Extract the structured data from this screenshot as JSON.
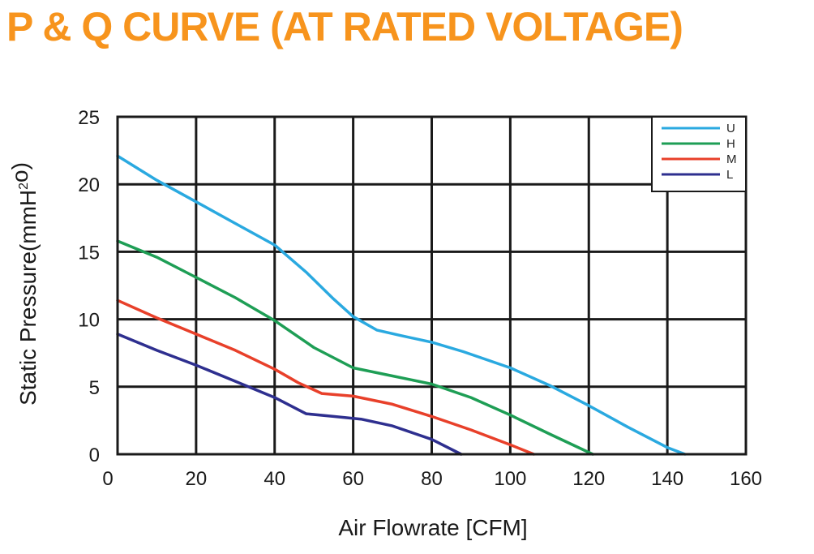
{
  "title": "P & Q CURVE (AT RATED VOLTAGE)",
  "colors": {
    "title": "#f7941d",
    "U": "#2aa9e0",
    "H": "#1e9e55",
    "M": "#e8402a",
    "L": "#2e2f8f"
  },
  "chart_data": {
    "type": "line",
    "title": "P & Q CURVE (AT RATED VOLTAGE)",
    "xlabel": "Air  Flowrate   [CFM]",
    "ylabel": "Static Pressure(mmH²o)",
    "xlim": [
      0,
      160
    ],
    "ylim": [
      0,
      25
    ],
    "xticks": [
      "0",
      "20",
      "40",
      "60",
      "80",
      "100",
      "120",
      "140",
      "160"
    ],
    "yticks": [
      "0",
      "5",
      "10",
      "15",
      "20",
      "25"
    ],
    "grid": true,
    "legend_position": "top-right",
    "series": [
      {
        "name": "U",
        "color": "#2aa9e0",
        "x": [
          0,
          10,
          20,
          30,
          40,
          48,
          55,
          60,
          66,
          72,
          80,
          88,
          100,
          110,
          120,
          130,
          140,
          144.5
        ],
        "y": [
          22.1,
          20.3,
          18.7,
          17.1,
          15.5,
          13.5,
          11.5,
          10.2,
          9.2,
          8.8,
          8.3,
          7.6,
          6.4,
          5.1,
          3.6,
          2.0,
          0.5,
          0
        ]
      },
      {
        "name": "H",
        "color": "#1e9e55",
        "x": [
          0,
          10,
          20,
          30,
          40,
          50,
          60,
          70,
          80,
          90,
          100,
          110,
          121
        ],
        "y": [
          15.8,
          14.6,
          13.1,
          11.6,
          9.9,
          7.9,
          6.4,
          5.8,
          5.2,
          4.2,
          2.9,
          1.5,
          0
        ]
      },
      {
        "name": "M",
        "color": "#e8402a",
        "x": [
          0,
          10,
          20,
          30,
          40,
          46,
          52,
          60,
          70,
          80,
          90,
          100,
          106
        ],
        "y": [
          11.4,
          10.1,
          8.9,
          7.7,
          6.3,
          5.3,
          4.5,
          4.3,
          3.7,
          2.8,
          1.8,
          0.7,
          0
        ]
      },
      {
        "name": "L",
        "color": "#2e2f8f",
        "x": [
          0,
          10,
          20,
          30,
          40,
          48,
          55,
          62,
          70,
          80,
          87.5
        ],
        "y": [
          8.9,
          7.7,
          6.6,
          5.4,
          4.2,
          3.0,
          2.8,
          2.6,
          2.1,
          1.1,
          0
        ]
      }
    ]
  }
}
